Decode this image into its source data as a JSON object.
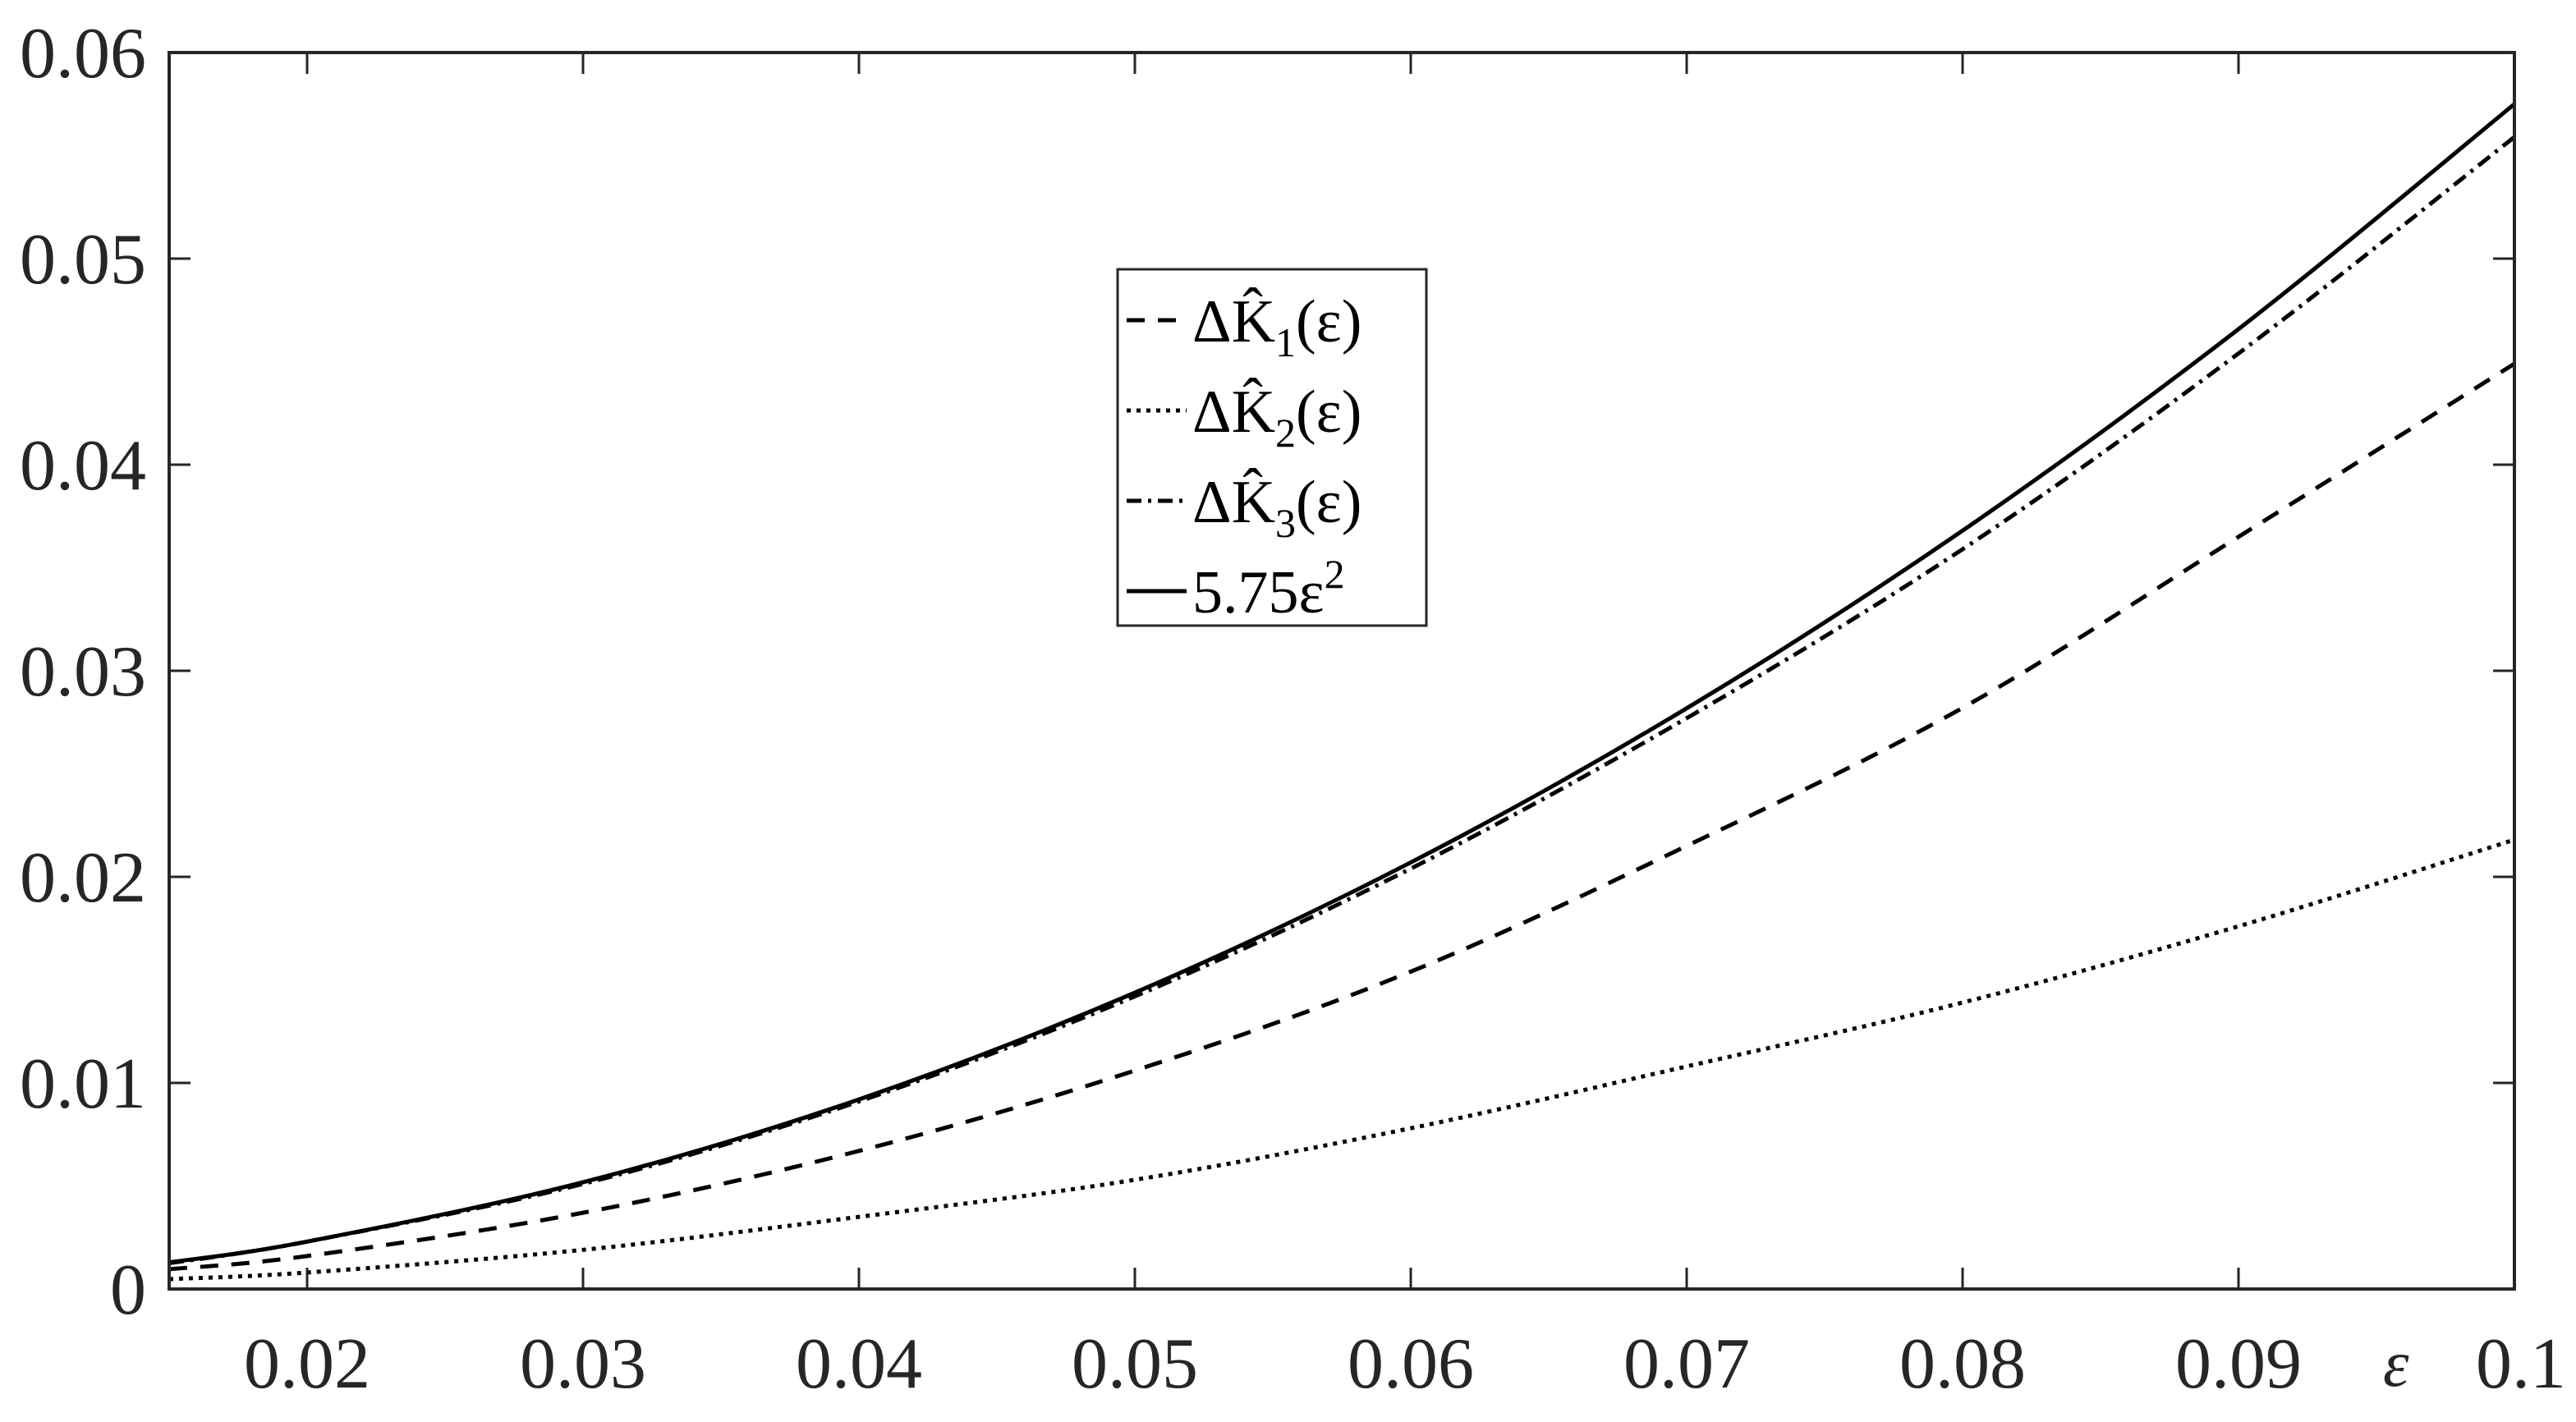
{
  "chart_data": {
    "type": "line",
    "title": "",
    "xlabel": "ε",
    "ylabel": "",
    "xlim": [
      0.015,
      0.1
    ],
    "ylim": [
      0,
      0.06
    ],
    "grid": false,
    "legend_position": "upper-center",
    "x_ticks": [
      "0.02",
      "0.03",
      "0.04",
      "0.05",
      "0.06",
      "0.07",
      "0.08",
      "0.09",
      "0.1"
    ],
    "y_ticks": [
      "0",
      "0.01",
      "0.02",
      "0.03",
      "0.04",
      "0.05",
      "0.06"
    ],
    "x": [
      0.015,
      0.02,
      0.03,
      0.04,
      0.05,
      0.06,
      0.07,
      0.08,
      0.09,
      0.1
    ],
    "series": [
      {
        "name": "ΔK̂1(ε)",
        "style": "dashed",
        "values": [
          0.00096,
          0.0016,
          0.0037,
          0.0067,
          0.0106,
          0.0154,
          0.0215,
          0.0282,
          0.0365,
          0.0449
        ]
      },
      {
        "name": "ΔK̂2(ε)",
        "style": "dotted",
        "values": [
          0.00048,
          0.0008,
          0.0019,
          0.0035,
          0.0053,
          0.0078,
          0.0108,
          0.0139,
          0.0176,
          0.0218
        ]
      },
      {
        "name": "ΔK̂3(ε)",
        "style": "dashdot",
        "values": [
          0.00125,
          0.0023,
          0.0051,
          0.0091,
          0.0142,
          0.0204,
          0.0277,
          0.0359,
          0.0454,
          0.0559
        ]
      },
      {
        "name": "5.75ε²",
        "style": "solid",
        "values": [
          0.00129,
          0.0023,
          0.00518,
          0.0092,
          0.01438,
          0.0207,
          0.02818,
          0.0368,
          0.04658,
          0.0575
        ]
      }
    ]
  },
  "legend": {
    "items": [
      {
        "prefix": "ΔK̂",
        "sub": "1",
        "suffix": "(ε)",
        "style": "dashed"
      },
      {
        "prefix": "ΔK̂",
        "sub": "2",
        "suffix": "(ε)",
        "style": "dotted"
      },
      {
        "prefix": "ΔK̂",
        "sub": "3",
        "suffix": "(ε)",
        "style": "dashdot"
      },
      {
        "prefix": "5.75ε",
        "sup": "2",
        "suffix": "",
        "style": "solid"
      }
    ]
  },
  "colors": {
    "line": "#000000",
    "axis": "#262626",
    "background": "#ffffff"
  }
}
